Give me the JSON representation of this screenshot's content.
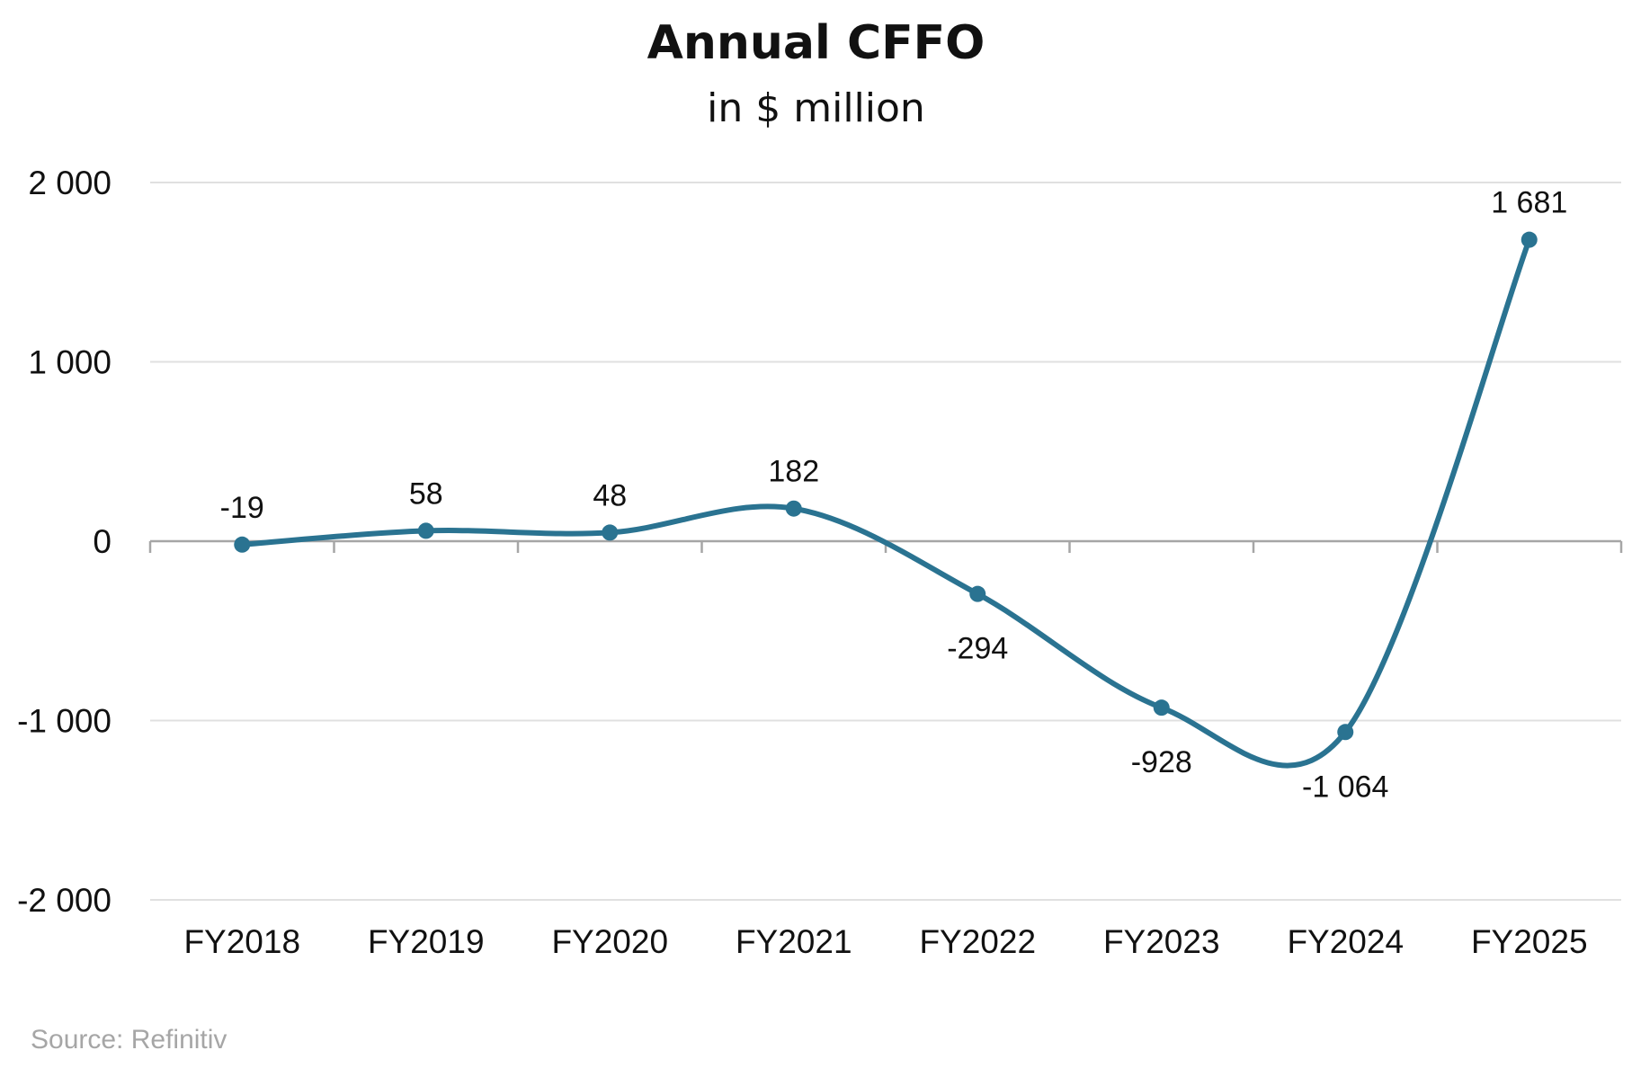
{
  "chart_data": {
    "type": "line",
    "title": "Annual CFFO",
    "subtitle": "in $ million",
    "categories": [
      "FY2018",
      "FY2019",
      "FY2020",
      "FY2021",
      "FY2022",
      "FY2023",
      "FY2024",
      "FY2025"
    ],
    "values": [
      -19,
      58,
      48,
      182,
      -294,
      -928,
      -1064,
      1681
    ],
    "data_labels": [
      "-19",
      "58",
      "48",
      "182",
      "-294",
      "-928",
      "-1 064",
      "1 681"
    ],
    "y_ticks": [
      2000,
      1000,
      0,
      -1000,
      -2000
    ],
    "y_tick_labels": [
      "2 000",
      "1 000",
      "0",
      "-1 000",
      "-2 000"
    ],
    "ylim": [
      -2000,
      2000
    ],
    "grid": true,
    "line_style": "smooth",
    "series_color": "#2a7391",
    "grid_color": "#e0e0e0",
    "axis_color": "#a6a6a6",
    "source": "Source: Refinitiv"
  }
}
